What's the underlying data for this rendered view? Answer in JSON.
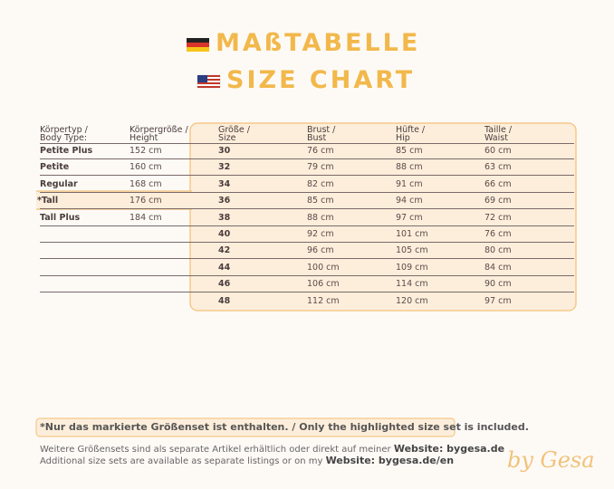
{
  "titles": {
    "de": "MAßTABELLE",
    "en": "SIZE CHART"
  },
  "body_types": {
    "header": [
      [
        "Körpertyp /",
        "Body Type:"
      ],
      [
        "Körpergröße /",
        "Height"
      ]
    ],
    "rows": [
      [
        "Petite Plus",
        "152 cm"
      ],
      [
        "Petite",
        "160 cm"
      ],
      [
        "Regular",
        "168 cm"
      ],
      [
        "*Tall",
        "176 cm"
      ],
      [
        "Tall Plus",
        "184 cm"
      ]
    ]
  },
  "sizes": {
    "header": [
      [
        "Größe /",
        "Size"
      ],
      [
        "Brust /",
        "Bust"
      ],
      [
        "Hüfte /",
        "Hip"
      ],
      [
        "Taille /",
        "Waist"
      ]
    ],
    "rows": [
      [
        "30",
        "76 cm",
        "85 cm",
        "60 cm"
      ],
      [
        "32",
        "79 cm",
        "88 cm",
        "63 cm"
      ],
      [
        "34",
        "82 cm",
        "91 cm",
        "66 cm"
      ],
      [
        "36",
        "85 cm",
        "94 cm",
        "69 cm"
      ],
      [
        "38",
        "88 cm",
        "97 cm",
        "72 cm"
      ],
      [
        "40",
        "92 cm",
        "101 cm",
        "76 cm"
      ],
      [
        "42",
        "96 cm",
        "105 cm",
        "80 cm"
      ],
      [
        "44",
        "100 cm",
        "109 cm",
        "84 cm"
      ],
      [
        "46",
        "106 cm",
        "114 cm",
        "90 cm"
      ],
      [
        "48",
        "112 cm",
        "120 cm",
        "97 cm"
      ]
    ]
  },
  "note": "*Nur das markierte Größenset ist enthalten. / Only the highlighted size set is included.",
  "footer": [
    {
      "text": "Weitere Größensets sind als separate Artikel erhältlich oder direkt auf meiner ",
      "link": "Website: bygesa.de"
    },
    {
      "text": "Additional size sets are available as separate listings or on my ",
      "link": "Website: bygesa.de/en"
    }
  ],
  "signature": "by Gesa"
}
